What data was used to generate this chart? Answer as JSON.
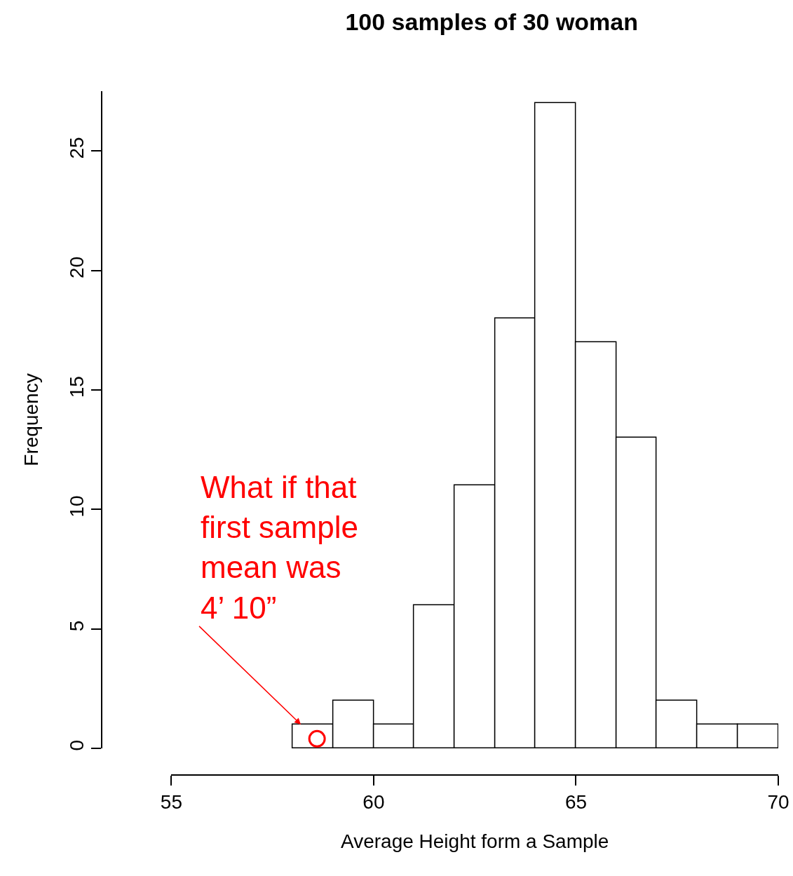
{
  "chart_data": {
    "type": "histogram",
    "title": "100 samples of 30 woman",
    "xlabel": "Average Height form a Sample",
    "ylabel": "Frequency",
    "bins": [
      58,
      59,
      60,
      61,
      62,
      63,
      64,
      65,
      66,
      67,
      68,
      69,
      70
    ],
    "values": [
      1,
      2,
      1,
      6,
      11,
      18,
      27,
      17,
      13,
      2,
      1,
      1
    ],
    "color": "#ffffff",
    "series": [
      {
        "type": "scatter",
        "x": [
          58.6
        ],
        "values": [
          0.4
        ],
        "color": "#ff0000",
        "marker": "circle"
      }
    ],
    "xlim": [
      55,
      70
    ],
    "xticks": [
      55,
      60,
      65,
      70
    ],
    "ylim": [
      0,
      27.5
    ],
    "yticks": [
      0,
      5,
      10,
      15,
      20,
      25
    ],
    "grid": false,
    "annotations": [
      {
        "text": "What if that first sample mean was 4’ 10”",
        "x": 58.2,
        "y": 1
      }
    ]
  }
}
